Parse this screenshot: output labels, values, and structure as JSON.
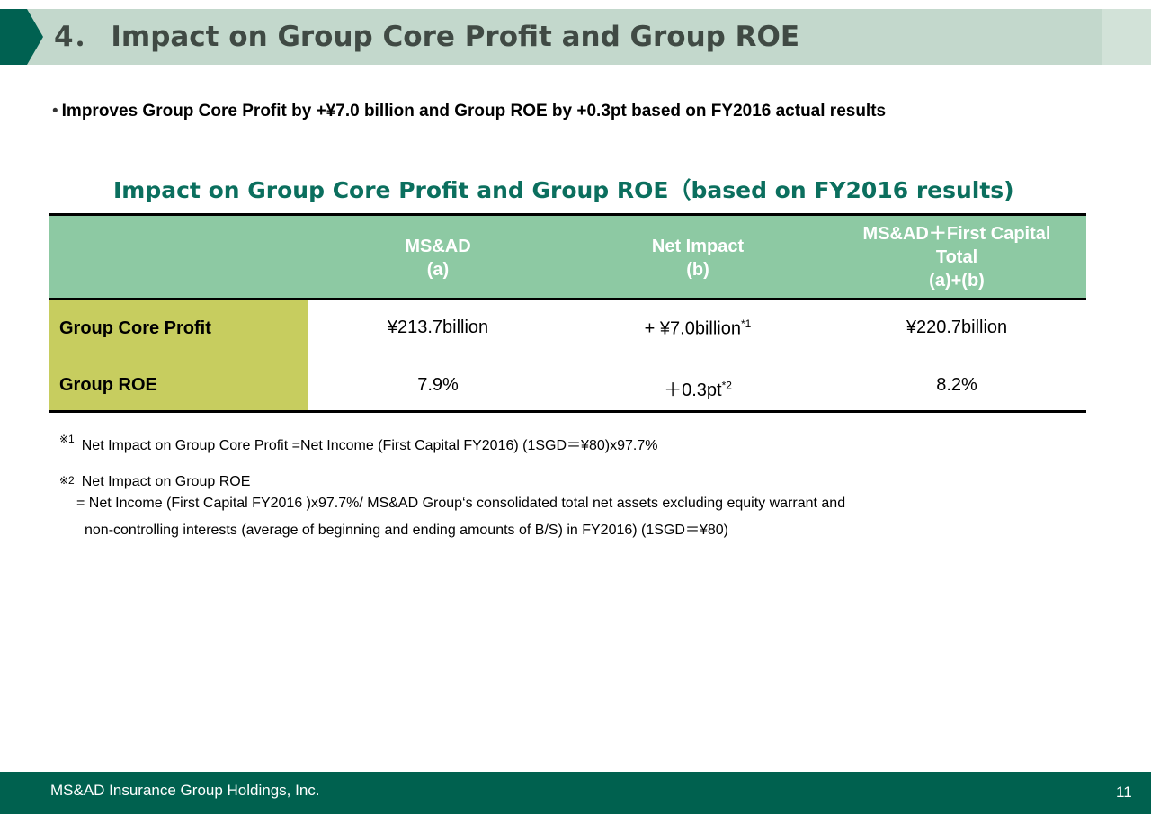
{
  "slide": {
    "title": "4． Impact on Group Core Profit and Group ROE",
    "bullet": "Improves Group Core Profit by +¥7.0 billion and Group ROE by +0.3pt based on FY2016 actual results",
    "table_title": "Impact on Group Core Profit and Group ROE（based on FY2016 results)"
  },
  "colors": {
    "title_accent": "#006151",
    "title_bar": "#c3d8cc",
    "heading_text": "#0b6f5e",
    "table_header": "#8dc9a3",
    "row_label_bg": "#c7cd5f",
    "footer": "#00614f"
  },
  "table": {
    "headers": [
      {
        "line1": "MS&AD",
        "line2": "(a)"
      },
      {
        "line1": "Net Impact",
        "line2": "(b)"
      },
      {
        "line1": "MS&AD＋First Capital",
        "line2": "Total",
        "line3": "(a)+(b)"
      }
    ],
    "rows": [
      {
        "label": "Group Core Profit",
        "a": "¥213.7billion",
        "b": "+ ¥7.0billion",
        "b_note": "*1",
        "total": "¥220.7billion"
      },
      {
        "label": "Group ROE",
        "a": "7.9%",
        "b": "＋0.3pt",
        "b_note": "*2",
        "total": "8.2%"
      }
    ]
  },
  "notes": {
    "note1_mark": "※1",
    "note1": "Net Impact on Group Core Profit =Net Income (First Capital FY2016) (1SGD＝¥80)x97.7%",
    "note2_mark": "※2",
    "note2_title": "Net Impact on Group ROE",
    "note2_line1": "= Net Income (First Capital FY2016 )x97.7%/ MS&AD Group‘s consolidated total net assets excluding equity warrant and",
    "note2_line2": "non-controlling interests (average of beginning and ending amounts of B/S) in FY2016) (1SGD＝¥80)"
  },
  "footer": {
    "company": "MS&AD Insurance Group Holdings, Inc.",
    "page_number": "11"
  }
}
